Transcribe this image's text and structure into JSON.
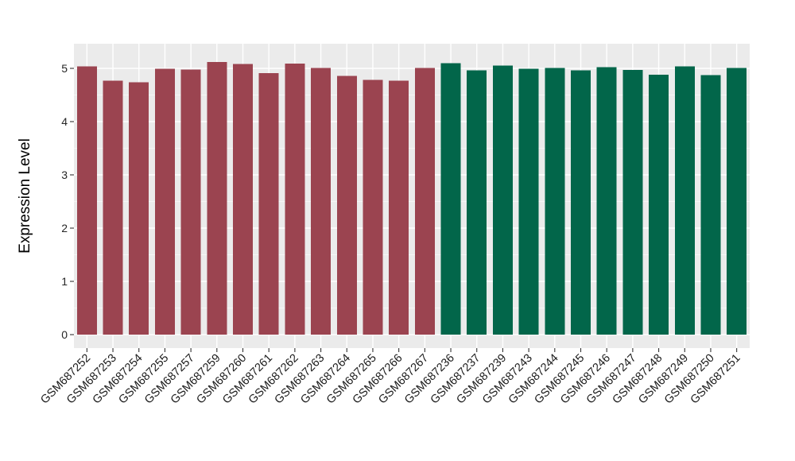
{
  "figure": {
    "background_color": "#FFFFFF",
    "panel_background_color": "#EBEBEB",
    "grid_major_color": "#FFFFFF",
    "grid_minor_color": "#FFFFFF",
    "axis_tick_color": "#333333",
    "axis_text_color": "#262626"
  },
  "chart_data": {
    "type": "bar",
    "title": "",
    "xlabel": "",
    "ylabel": "Expression Level",
    "ylim": [
      0,
      5.46
    ],
    "yticks": [
      0,
      1,
      2,
      3,
      4,
      5
    ],
    "grid": "horizontal major gridlines at integers, minor at halves, vertical major gridline at each category center; white on gray panel",
    "legend_position": "none",
    "x_tick_rotation_degrees": 45,
    "categories": [
      "GSM687252",
      "GSM687253",
      "GSM687254",
      "GSM687255",
      "GSM687257",
      "GSM687259",
      "GSM687260",
      "GSM687261",
      "GSM687262",
      "GSM687263",
      "GSM687264",
      "GSM687265",
      "GSM687266",
      "GSM687267",
      "GSM687236",
      "GSM687237",
      "GSM687239",
      "GSM687243",
      "GSM687244",
      "GSM687245",
      "GSM687246",
      "GSM687247",
      "GSM687248",
      "GSM687249",
      "GSM687250",
      "GSM687251"
    ],
    "values": [
      5.04,
      4.77,
      4.74,
      4.99,
      4.98,
      5.12,
      5.08,
      4.91,
      5.09,
      5.01,
      4.86,
      4.78,
      4.77,
      5.01,
      5.1,
      4.96,
      5.05,
      4.99,
      5.01,
      4.96,
      5.02,
      4.97,
      4.88,
      5.04,
      4.87,
      5.01
    ],
    "bar_groups": [
      {
        "name": "group-1-red",
        "color": "#9B4450",
        "start": 0,
        "count": 14
      },
      {
        "name": "group-2-green",
        "color": "#02664A",
        "start": 14,
        "count": 12
      }
    ]
  }
}
